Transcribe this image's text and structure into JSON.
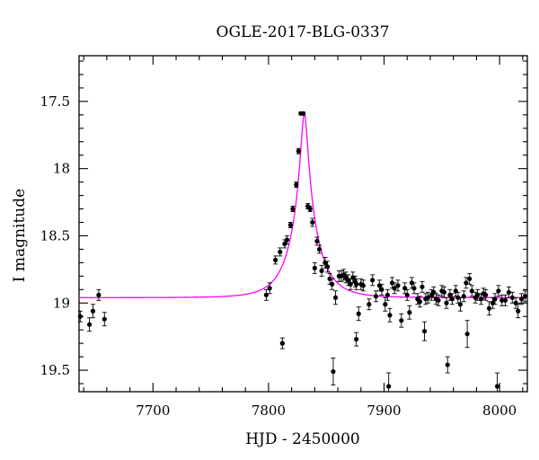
{
  "chart_data": {
    "type": "scatter",
    "title": "OGLE-2017-BLG-0337",
    "xlabel": "HJD - 2450000",
    "ylabel": "I magnitude",
    "xlim": [
      7636,
      8024
    ],
    "ylim": [
      19.66,
      17.16
    ],
    "y_inverted": true,
    "x_ticks": [
      7700,
      7800,
      7900,
      8000
    ],
    "y_ticks": [
      17.5,
      18,
      18.5,
      19,
      19.5
    ],
    "x_tick_labels": [
      "7700",
      "7800",
      "7900",
      "8000"
    ],
    "y_tick_labels": [
      "17.5",
      "18",
      "18.5",
      "19",
      "19.5"
    ],
    "grid": false,
    "colors": {
      "points": "#000000",
      "model": "#ff00ff"
    },
    "model_curve": {
      "baseline": 18.96,
      "peak_mag": 17.59,
      "t0": 7831,
      "tE": 22,
      "u0": 0.12
    },
    "series": [
      {
        "x": [
          7637,
          7645,
          7648,
          7653,
          7658,
          7798,
          7801,
          7806,
          7810,
          7814,
          7816,
          7819,
          7821,
          7824,
          7826,
          7828,
          7830,
          7834,
          7836,
          7838,
          7840,
          7842,
          7844,
          7846,
          7849,
          7851,
          7853,
          7855,
          7858,
          7861,
          7863,
          7865,
          7867,
          7869,
          7871,
          7873,
          7875,
          7876,
          7878,
          7880,
          7882,
          7887,
          7890,
          7893,
          7896,
          7898,
          7901,
          7903,
          7905,
          7907,
          7909,
          7912,
          7915,
          7918,
          7920,
          7922,
          7924,
          7926,
          7929,
          7931,
          7933,
          7936,
          7938,
          7941,
          7943,
          7945,
          7947,
          7950,
          7952,
          7954,
          7957,
          7959,
          7962,
          7964,
          7966,
          7969,
          7971,
          7974,
          7976,
          7979,
          7981,
          7984,
          7986,
          7988,
          7991,
          7994,
          7996,
          7999,
          8002,
          8005,
          8008,
          8011,
          8014,
          8016,
          8019,
          8022,
          7812,
          7856,
          7876,
          7904,
          7935,
          7955,
          7972,
          7998
        ],
        "y": [
          19.1,
          19.16,
          19.06,
          18.94,
          19.12,
          18.94,
          18.89,
          18.68,
          18.62,
          18.56,
          18.53,
          18.42,
          18.3,
          18.12,
          17.87,
          17.59,
          17.59,
          18.28,
          18.3,
          18.4,
          18.74,
          18.54,
          18.6,
          18.76,
          18.7,
          18.73,
          18.82,
          18.86,
          18.96,
          18.8,
          18.8,
          18.79,
          18.81,
          18.83,
          18.86,
          18.81,
          18.84,
          18.86,
          19.08,
          18.86,
          18.87,
          19.01,
          18.83,
          18.95,
          18.87,
          18.9,
          19.01,
          18.94,
          19.09,
          18.85,
          18.89,
          18.87,
          19.13,
          18.89,
          18.94,
          19.07,
          18.85,
          18.89,
          18.97,
          18.99,
          18.88,
          18.97,
          18.96,
          18.94,
          18.92,
          18.97,
          18.98,
          18.91,
          18.92,
          19.0,
          18.94,
          18.97,
          18.91,
          18.96,
          19.01,
          18.95,
          18.85,
          18.82,
          18.91,
          18.96,
          18.94,
          18.97,
          18.93,
          18.94,
          19.04,
          19.0,
          18.97,
          18.91,
          18.98,
          18.98,
          18.92,
          18.96,
          19.0,
          19.06,
          18.97,
          18.95,
          19.3,
          19.51,
          19.27,
          19.62,
          19.21,
          19.46,
          19.23,
          19.62
        ],
        "err": [
          0.04,
          0.05,
          0.05,
          0.04,
          0.05,
          0.04,
          0.04,
          0.03,
          0.03,
          0.03,
          0.03,
          0.02,
          0.02,
          0.02,
          0.02,
          0.01,
          0.01,
          0.02,
          0.02,
          0.03,
          0.04,
          0.03,
          0.03,
          0.04,
          0.04,
          0.04,
          0.04,
          0.04,
          0.05,
          0.04,
          0.04,
          0.04,
          0.04,
          0.04,
          0.04,
          0.04,
          0.04,
          0.04,
          0.05,
          0.04,
          0.04,
          0.04,
          0.04,
          0.04,
          0.04,
          0.04,
          0.05,
          0.04,
          0.05,
          0.04,
          0.04,
          0.04,
          0.05,
          0.04,
          0.04,
          0.05,
          0.04,
          0.04,
          0.04,
          0.04,
          0.04,
          0.04,
          0.04,
          0.04,
          0.04,
          0.04,
          0.04,
          0.04,
          0.04,
          0.04,
          0.04,
          0.04,
          0.04,
          0.04,
          0.05,
          0.04,
          0.04,
          0.04,
          0.04,
          0.04,
          0.04,
          0.04,
          0.04,
          0.04,
          0.05,
          0.04,
          0.04,
          0.04,
          0.04,
          0.04,
          0.04,
          0.04,
          0.04,
          0.05,
          0.04,
          0.04,
          0.04,
          0.1,
          0.05,
          0.1,
          0.07,
          0.06,
          0.1,
          0.1
        ]
      }
    ]
  }
}
